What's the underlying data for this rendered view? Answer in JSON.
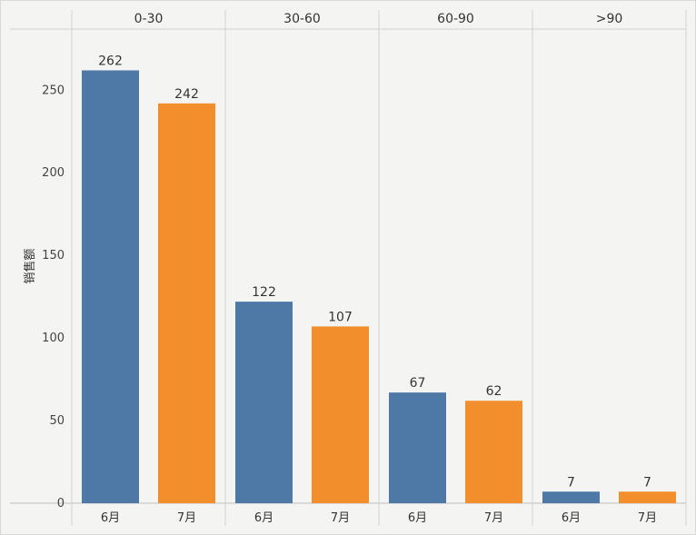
{
  "chart_data": {
    "type": "bar",
    "ylabel": "销售额",
    "ylim": [
      0,
      287
    ],
    "yticks": [
      0,
      50,
      100,
      150,
      200,
      250
    ],
    "panels": [
      "0-30",
      "30-60",
      "60-90",
      ">90"
    ],
    "months": [
      "6月",
      "7月"
    ],
    "series": [
      {
        "values": [
          262,
          122,
          67,
          7
        ],
        "color": "#4e79a7"
      },
      {
        "values": [
          242,
          107,
          62,
          7
        ],
        "color": "#f28e2b"
      }
    ],
    "grid": false
  }
}
